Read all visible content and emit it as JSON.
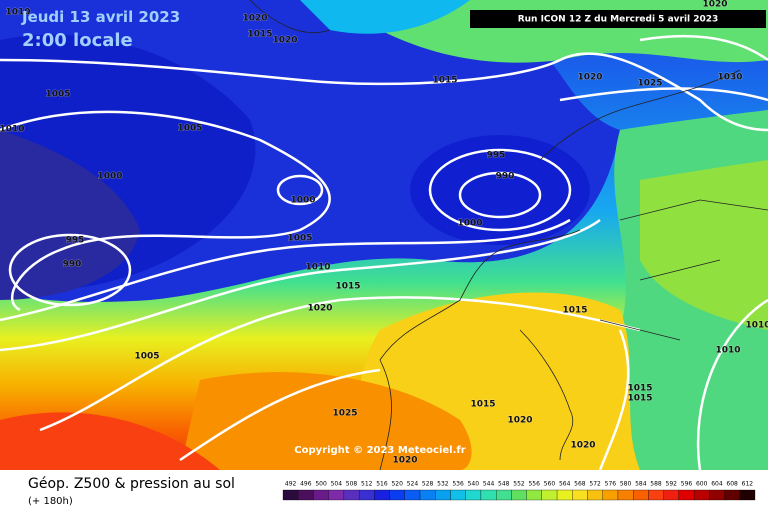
{
  "header": {
    "date": "Jeudi 13 avril 2023",
    "time": "2:00 locale",
    "run": "Run ICON 12 Z du Mercredi 5 avril 2023"
  },
  "isobar_labels": [
    "1010",
    "1020",
    "1015",
    "1020",
    "1005",
    "1010",
    "1005",
    "1000",
    "1000",
    "995",
    "990",
    "1000",
    "995",
    "990",
    "1005",
    "1010",
    "1015",
    "1020",
    "1015",
    "1020",
    "1025",
    "1030",
    "1020",
    "1005",
    "1025",
    "1015",
    "1020",
    "1020",
    "1020",
    "1015",
    "1015",
    "1015",
    "1010",
    "1010"
  ],
  "copyright": "Copyright © 2023 Meteociel.fr",
  "footer": {
    "title": "Géop. Z500 & pression au sol",
    "lead": "(+ 180h)"
  },
  "legend": {
    "values": [
      492,
      496,
      500,
      504,
      508,
      512,
      516,
      520,
      524,
      528,
      532,
      536,
      540,
      544,
      548,
      552,
      556,
      560,
      564,
      568,
      572,
      576,
      580,
      584,
      588,
      592,
      596,
      600,
      604,
      608,
      612
    ],
    "colors": [
      "#2b0a3d",
      "#4b0f5e",
      "#6a1b8a",
      "#7d2ba8",
      "#5a2fc0",
      "#3a2fd0",
      "#1a20e0",
      "#0a3cf0",
      "#0a5cf5",
      "#0a80f5",
      "#0aa0f0",
      "#10c0e8",
      "#20d8d0",
      "#30e0b0",
      "#40e090",
      "#60e060",
      "#90e840",
      "#c0f030",
      "#e8f020",
      "#f8e020",
      "#f8c010",
      "#f8a000",
      "#f88000",
      "#f86000",
      "#f84010",
      "#f02010",
      "#e00000",
      "#b80000",
      "#900000",
      "#600000",
      "#200000"
    ]
  }
}
